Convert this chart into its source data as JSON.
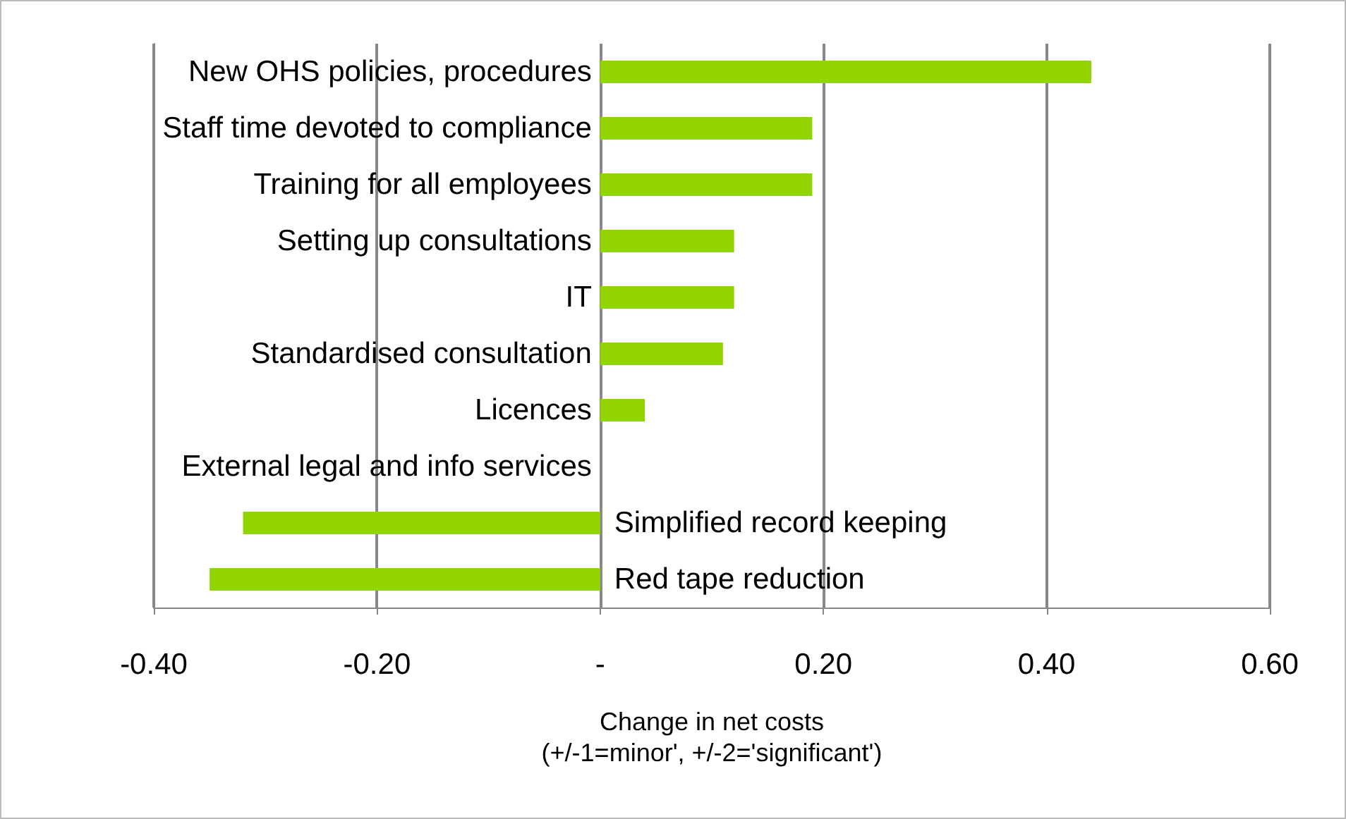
{
  "chart_data": {
    "type": "bar",
    "orientation": "horizontal",
    "xlabel": "Change in net costs\n(+/-1=minor', +/-2='significant')",
    "categories": [
      "New OHS policies, procedures",
      "Staff time devoted to compliance",
      "Training for all employees",
      "Setting up consultations",
      "IT",
      "Standardised consultation",
      "Licences",
      "External legal and info services",
      "Simplified record keeping",
      "Red tape reduction"
    ],
    "values": [
      0.44,
      0.19,
      0.19,
      0.12,
      0.12,
      0.11,
      0.04,
      0,
      -0.32,
      -0.35
    ],
    "color": "#92d400",
    "xlim": [
      -0.4,
      0.6
    ],
    "xticks": [
      {
        "value": -0.4,
        "label": "-0.40"
      },
      {
        "value": -0.2,
        "label": "-0.20"
      },
      {
        "value": 0,
        "label": "-"
      },
      {
        "value": 0.2,
        "label": "0.20"
      },
      {
        "value": 0.4,
        "label": "0.40"
      },
      {
        "value": 0.6,
        "label": "0.60"
      }
    ],
    "grid": "x"
  }
}
